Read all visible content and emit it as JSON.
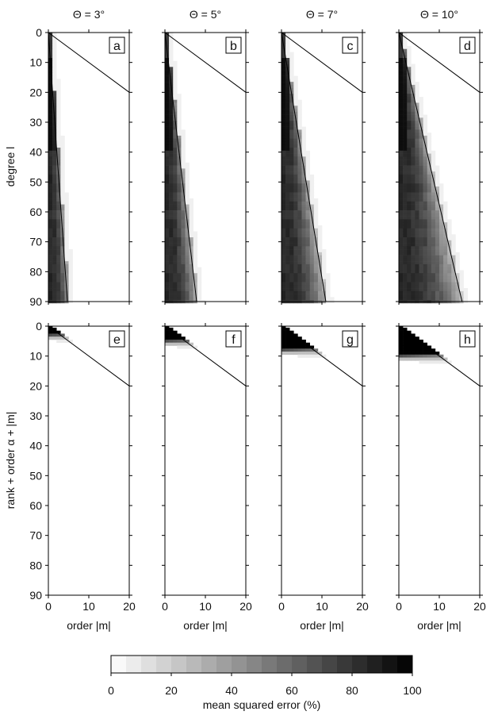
{
  "chart_data": {
    "type": "heatmap",
    "grid": false,
    "panels": [
      {
        "label": "a",
        "row": "top",
        "title": "Θ = 3°",
        "theta_deg": 3
      },
      {
        "label": "b",
        "row": "top",
        "title": "Θ = 5°",
        "theta_deg": 5
      },
      {
        "label": "c",
        "row": "top",
        "title": "Θ = 7°",
        "theta_deg": 7
      },
      {
        "label": "d",
        "row": "top",
        "title": "Θ = 10°",
        "theta_deg": 10
      },
      {
        "label": "e",
        "row": "bottom",
        "theta_deg": 3,
        "black_extent": 3
      },
      {
        "label": "f",
        "row": "bottom",
        "theta_deg": 5,
        "black_extent": 5
      },
      {
        "label": "g",
        "row": "bottom",
        "theta_deg": 7,
        "black_extent": 7.5
      },
      {
        "label": "h",
        "row": "bottom",
        "theta_deg": 10,
        "black_extent": 10
      }
    ],
    "top_ylabel": "degree l",
    "bottom_ylabel": "rank + order α + |m|",
    "xlabel": "order |m|",
    "xlim": [
      0,
      20
    ],
    "ylim": [
      90,
      0
    ],
    "xticks": [
      "0",
      "10",
      "20"
    ],
    "yticks": [
      "0",
      "10",
      "20",
      "30",
      "40",
      "50",
      "60",
      "70",
      "80",
      "90"
    ],
    "colorbar": {
      "label": "mean squared error (%)",
      "range": [
        0,
        100
      ],
      "steps": 20,
      "ticks": [
        "0",
        "20",
        "40",
        "60",
        "80",
        "100"
      ]
    }
  }
}
